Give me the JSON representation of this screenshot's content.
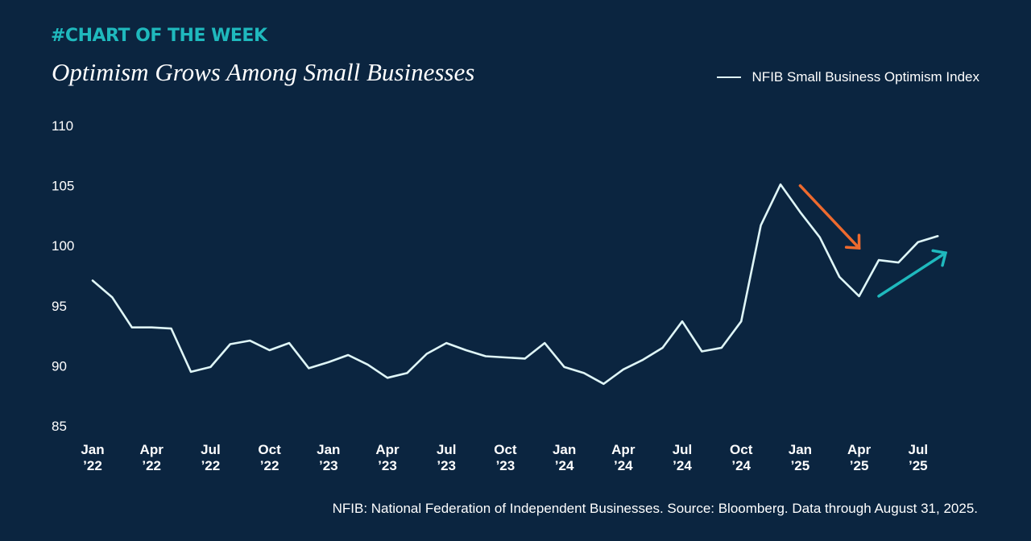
{
  "header": {
    "kicker": "#CHART OF THE WEEK",
    "title": "Optimism Grows Among Small Businesses"
  },
  "footer": {
    "note": "NFIB: National Federation of Independent Businesses. Source: Bloomberg. Data through August 31, 2025."
  },
  "colors": {
    "background": "#0b2540",
    "line": "#dff6f7",
    "accent_teal": "#1fb9bd",
    "arrow_down": "#ee6a2e",
    "arrow_up": "#1fb9bd"
  },
  "chart_data": {
    "type": "line",
    "title": "Optimism Grows Among Small Businesses",
    "xlabel": "",
    "ylabel": "",
    "ylim": [
      85,
      110
    ],
    "yticks": [
      85,
      90,
      95,
      100,
      105,
      110
    ],
    "legend": "top-right",
    "grid": false,
    "xticks": [
      {
        "index": 0,
        "line1": "Jan",
        "line2": "’22"
      },
      {
        "index": 3,
        "line1": "Apr",
        "line2": "’22"
      },
      {
        "index": 6,
        "line1": "Jul",
        "line2": "’22"
      },
      {
        "index": 9,
        "line1": "Oct",
        "line2": "’22"
      },
      {
        "index": 12,
        "line1": "Jan",
        "line2": "’23"
      },
      {
        "index": 15,
        "line1": "Apr",
        "line2": "’23"
      },
      {
        "index": 18,
        "line1": "Jul",
        "line2": "’23"
      },
      {
        "index": 21,
        "line1": "Oct",
        "line2": "’23"
      },
      {
        "index": 24,
        "line1": "Jan",
        "line2": "’24"
      },
      {
        "index": 27,
        "line1": "Apr",
        "line2": "’24"
      },
      {
        "index": 30,
        "line1": "Jul",
        "line2": "’24"
      },
      {
        "index": 33,
        "line1": "Oct",
        "line2": "’24"
      },
      {
        "index": 36,
        "line1": "Jan",
        "line2": "’25"
      },
      {
        "index": 39,
        "line1": "Apr",
        "line2": "’25"
      },
      {
        "index": 42,
        "line1": "Jul",
        "line2": "’25"
      }
    ],
    "series": [
      {
        "name": "NFIB Small Business Optimism Index",
        "months": [
          "2022-01",
          "2022-02",
          "2022-03",
          "2022-04",
          "2022-05",
          "2022-06",
          "2022-07",
          "2022-08",
          "2022-09",
          "2022-10",
          "2022-11",
          "2022-12",
          "2023-01",
          "2023-02",
          "2023-03",
          "2023-04",
          "2023-05",
          "2023-06",
          "2023-07",
          "2023-08",
          "2023-09",
          "2023-10",
          "2023-11",
          "2023-12",
          "2024-01",
          "2024-02",
          "2024-03",
          "2024-04",
          "2024-05",
          "2024-06",
          "2024-07",
          "2024-08",
          "2024-09",
          "2024-10",
          "2024-11",
          "2024-12",
          "2025-01",
          "2025-02",
          "2025-03",
          "2025-04",
          "2025-05",
          "2025-06",
          "2025-07",
          "2025-08"
        ],
        "values": [
          97.1,
          95.7,
          93.2,
          93.2,
          93.1,
          89.5,
          89.9,
          91.8,
          92.1,
          91.3,
          91.9,
          89.8,
          90.3,
          90.9,
          90.1,
          89.0,
          89.4,
          91.0,
          91.9,
          91.3,
          90.8,
          90.7,
          90.6,
          91.9,
          89.9,
          89.4,
          88.5,
          89.7,
          90.5,
          91.5,
          93.7,
          91.2,
          91.5,
          93.7,
          101.7,
          105.1,
          102.8,
          100.7,
          97.4,
          95.8,
          98.8,
          98.6,
          100.3,
          100.8
        ]
      }
    ],
    "annotations": [
      {
        "type": "arrow",
        "direction": "down",
        "color": "#ee6a2e",
        "from_index": 36,
        "to_index": 39,
        "from_value": 105.0,
        "to_value": 99.8
      },
      {
        "type": "arrow",
        "direction": "up",
        "color": "#1fb9bd",
        "from_index": 40.0,
        "to_index": 43.4,
        "from_value": 95.8,
        "to_value": 99.4
      }
    ]
  }
}
